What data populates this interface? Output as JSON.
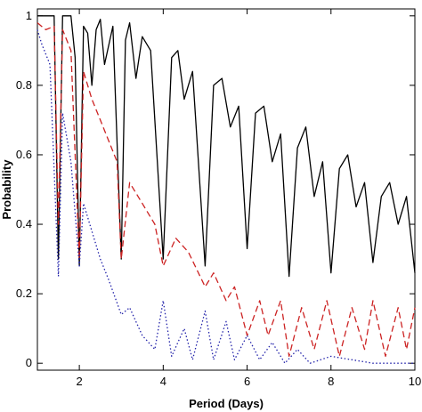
{
  "chart_data": {
    "type": "line",
    "title": "",
    "xlabel": "Period (Days)",
    "ylabel": "Probability",
    "xlim": [
      1,
      10
    ],
    "ylim": [
      -0.02,
      1.02
    ],
    "x_ticks": [
      2,
      4,
      6,
      8,
      10
    ],
    "x_tick_labels": [
      "2",
      "4",
      "6",
      "8",
      "10"
    ],
    "y_ticks": [
      0,
      0.2,
      0.4,
      0.6,
      0.8,
      1
    ],
    "y_tick_labels": [
      "0",
      "0.2",
      "0.4",
      "0.6",
      "0.8",
      "1"
    ],
    "grid": false,
    "legend": "none",
    "series": [
      {
        "color": "#000000",
        "style": "solid",
        "points": [
          [
            1.0,
            1.0
          ],
          [
            1.2,
            1.0
          ],
          [
            1.4,
            1.0
          ],
          [
            1.5,
            0.3
          ],
          [
            1.6,
            1.0
          ],
          [
            1.8,
            1.0
          ],
          [
            1.9,
            0.88
          ],
          [
            2.0,
            0.28
          ],
          [
            2.1,
            0.97
          ],
          [
            2.2,
            0.95
          ],
          [
            2.3,
            0.8
          ],
          [
            2.4,
            0.96
          ],
          [
            2.5,
            0.99
          ],
          [
            2.6,
            0.86
          ],
          [
            2.8,
            0.97
          ],
          [
            3.0,
            0.3
          ],
          [
            3.1,
            0.93
          ],
          [
            3.2,
            0.98
          ],
          [
            3.35,
            0.82
          ],
          [
            3.5,
            0.94
          ],
          [
            3.7,
            0.9
          ],
          [
            4.0,
            0.3
          ],
          [
            4.2,
            0.88
          ],
          [
            4.35,
            0.9
          ],
          [
            4.5,
            0.76
          ],
          [
            4.7,
            0.84
          ],
          [
            5.0,
            0.28
          ],
          [
            5.2,
            0.8
          ],
          [
            5.4,
            0.82
          ],
          [
            5.6,
            0.68
          ],
          [
            5.8,
            0.74
          ],
          [
            6.0,
            0.33
          ],
          [
            6.2,
            0.72
          ],
          [
            6.4,
            0.74
          ],
          [
            6.6,
            0.58
          ],
          [
            6.8,
            0.66
          ],
          [
            7.0,
            0.25
          ],
          [
            7.2,
            0.62
          ],
          [
            7.4,
            0.68
          ],
          [
            7.6,
            0.48
          ],
          [
            7.8,
            0.58
          ],
          [
            8.0,
            0.26
          ],
          [
            8.2,
            0.56
          ],
          [
            8.4,
            0.6
          ],
          [
            8.6,
            0.45
          ],
          [
            8.8,
            0.52
          ],
          [
            9.0,
            0.29
          ],
          [
            9.2,
            0.48
          ],
          [
            9.4,
            0.52
          ],
          [
            9.6,
            0.4
          ],
          [
            9.8,
            0.48
          ],
          [
            10.0,
            0.26
          ]
        ]
      },
      {
        "color": "#cc2222",
        "style": "dashed",
        "points": [
          [
            1.0,
            0.98
          ],
          [
            1.2,
            0.96
          ],
          [
            1.4,
            0.97
          ],
          [
            1.5,
            0.4
          ],
          [
            1.6,
            0.96
          ],
          [
            1.8,
            0.9
          ],
          [
            2.0,
            0.3
          ],
          [
            2.1,
            0.84
          ],
          [
            2.3,
            0.76
          ],
          [
            2.5,
            0.7
          ],
          [
            2.7,
            0.64
          ],
          [
            2.9,
            0.58
          ],
          [
            3.0,
            0.3
          ],
          [
            3.2,
            0.52
          ],
          [
            3.5,
            0.46
          ],
          [
            3.8,
            0.4
          ],
          [
            4.0,
            0.28
          ],
          [
            4.3,
            0.36
          ],
          [
            4.6,
            0.32
          ],
          [
            5.0,
            0.22
          ],
          [
            5.2,
            0.26
          ],
          [
            5.5,
            0.18
          ],
          [
            5.7,
            0.22
          ],
          [
            6.0,
            0.08
          ],
          [
            6.3,
            0.18
          ],
          [
            6.5,
            0.08
          ],
          [
            6.8,
            0.18
          ],
          [
            7.0,
            0.02
          ],
          [
            7.3,
            0.16
          ],
          [
            7.6,
            0.04
          ],
          [
            7.9,
            0.18
          ],
          [
            8.2,
            0.02
          ],
          [
            8.5,
            0.16
          ],
          [
            8.8,
            0.04
          ],
          [
            9.0,
            0.18
          ],
          [
            9.3,
            0.02
          ],
          [
            9.6,
            0.16
          ],
          [
            9.8,
            0.04
          ],
          [
            10.0,
            0.16
          ]
        ]
      },
      {
        "color": "#2222aa",
        "style": "dotted",
        "points": [
          [
            1.0,
            0.96
          ],
          [
            1.1,
            0.92
          ],
          [
            1.3,
            0.86
          ],
          [
            1.5,
            0.25
          ],
          [
            1.6,
            0.72
          ],
          [
            1.8,
            0.58
          ],
          [
            2.0,
            0.28
          ],
          [
            2.1,
            0.46
          ],
          [
            2.3,
            0.38
          ],
          [
            2.5,
            0.3
          ],
          [
            2.7,
            0.24
          ],
          [
            3.0,
            0.14
          ],
          [
            3.2,
            0.16
          ],
          [
            3.5,
            0.08
          ],
          [
            3.8,
            0.04
          ],
          [
            4.0,
            0.18
          ],
          [
            4.2,
            0.02
          ],
          [
            4.5,
            0.1
          ],
          [
            4.7,
            0.01
          ],
          [
            5.0,
            0.15
          ],
          [
            5.2,
            0.01
          ],
          [
            5.5,
            0.12
          ],
          [
            5.7,
            0.01
          ],
          [
            6.0,
            0.08
          ],
          [
            6.3,
            0.01
          ],
          [
            6.6,
            0.06
          ],
          [
            6.9,
            0.0
          ],
          [
            7.2,
            0.04
          ],
          [
            7.5,
            0.0
          ],
          [
            8.0,
            0.02
          ],
          [
            9.0,
            0.0
          ],
          [
            10.0,
            0.0
          ]
        ]
      }
    ]
  }
}
